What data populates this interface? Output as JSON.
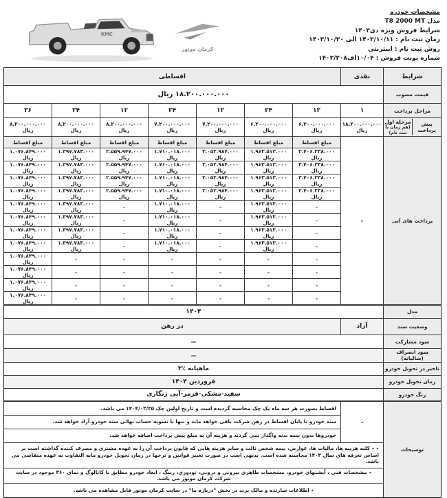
{
  "header": {
    "title": "مشخصات خودرو",
    "model_line": "مدل T8 2000 MT",
    "sale_line": "شرایط فروش ویژه دی۱۴۰۳",
    "register_time": "زمان ثبت نام : ۱۴۰۳/۱۰/۱۱ الی ۱۴۰۳/۱۰/۳۰",
    "register_method": "روش ثبت نام : اینترنتی",
    "sale_number": "شماره نوبت فروش : ۱۰/۰۴اف۱۴۰۳/۲۰۸",
    "brand": "کرمان موتور",
    "car_image": "kmc-t8-pickup-white",
    "accent_gray": "#ececec"
  },
  "table": {
    "terms_label": "شرایط",
    "cash_label": "نقدی",
    "installment_label": "اقساطی",
    "approved_price_label": "قیمت مصوب",
    "approved_price": "۱۸.۲۰۰.۰۰۰.۰۰۰ ریال",
    "stages_label": "مراحل پرداخت",
    "stages": [
      "۱",
      "۱۲",
      "۲۴",
      "۱۲",
      "۲۴",
      "۱۲",
      "۲۴",
      "۳۶"
    ],
    "downpayment_label": "پیش پرداخت",
    "downpayment_sub1": "مرحله اول",
    "downpayment_sub2": "(هم زمان با ثبت نام)",
    "downpayments": [
      "۱۸.۲۰۰.۰۰۰.۰۰۰ ریال",
      "۶.۲۰۰.۰۰۰.۰۰۰ ریال",
      "۶.۲۰۰.۰۰۰.۰۰۰ ریال",
      "۷.۲۰۰.۰۰۰.۰۰۰ ریال",
      "۷.۲۰۰.۰۰۰.۰۰۰ ریال",
      "۸.۲۰۰.۰۰۰.۰۰۰ ریال",
      "۸.۲۰۰.۰۰۰.۰۰۰ ریال",
      "۸.۲۰۰.۰۰۰.۰۰۰ ریال"
    ],
    "installment_amount_label": "مبلغ اقساط",
    "future_label": "پرداخت های آتی",
    "cash_future": "-",
    "payment_rows": [
      [
        "۳.۴۰۶.۳۳۸.۰۰۰ ریال",
        "۱.۹۶۳.۵۱۳.۰۰۰ ریال",
        "۳.۰۵۲.۹۸۴.۰۰۰ ریال",
        "۱.۷۱۰.۰۱۸.۰۰۰ ریال",
        "۲.۵۵۹.۹۴۷.۰۰۰ ریال",
        "۱.۳۹۷.۷۸۳.۰۰۰ ریال",
        "۱.۰۷۶.۸۴۹.۰۰۰ ریال"
      ],
      [
        "۳.۴۰۶.۳۳۸.۰۰۰ ریال",
        "۱.۹۶۳.۵۱۳.۰۰۰ ریال",
        "۳.۰۵۲.۹۸۴.۰۰۰ ریال",
        "۱.۷۱۰.۰۱۸.۰۰۰ ریال",
        "۲.۵۵۹.۹۴۷.۰۰۰ ریال",
        "۱.۳۹۷.۷۸۳.۰۰۰ ریال",
        "۱.۰۷۶.۸۴۹.۰۰۰ ریال"
      ],
      [
        "۳.۴۰۶.۳۳۸.۰۰۰ ریال",
        "۱.۹۶۳.۵۱۳.۰۰۰ ریال",
        "۳.۰۵۲.۹۸۴.۰۰۰ ریال",
        "۱.۷۱۰.۰۱۸.۰۰۰ ریال",
        "۲.۵۵۹.۹۴۷.۰۰۰ ریال",
        "۱.۳۹۷.۷۸۳.۰۰۰ ریال",
        "۱.۰۷۶.۸۴۹.۰۰۰ ریال"
      ],
      [
        "۳.۴۰۶.۳۳۸.۰۰۰ ریال",
        "۱.۹۶۳.۵۱۳.۰۰۰ ریال",
        "۳.۰۵۲.۹۸۴.۰۰۰ ریال",
        "۱.۷۱۰.۰۱۸.۰۰۰ ریال",
        "۲.۵۵۹.۹۴۷.۰۰۰ ریال",
        "۱.۳۹۷.۷۸۳.۰۰۰ ریال",
        "۱.۰۷۶.۸۴۹.۰۰۰ ریال"
      ],
      [
        "-",
        "۱.۹۶۳.۵۱۳.۰۰۰ ریال",
        "-",
        "۱.۷۱۰.۰۱۸.۰۰۰ ریال",
        "-",
        "۱.۳۹۷.۷۸۳.۰۰۰ ریال",
        "۱.۰۷۶.۸۴۹.۰۰۰ ریال"
      ],
      [
        "-",
        "۱.۹۶۳.۵۱۳.۰۰۰ ریال",
        "-",
        "۱.۷۱۰.۰۱۸.۰۰۰ ریال",
        "-",
        "۱.۳۹۷.۷۸۳.۰۰۰ ریال",
        "۱.۰۷۶.۸۴۹.۰۰۰ ریال"
      ],
      [
        "-",
        "۱.۹۶۳.۵۱۳.۰۰۰ ریال",
        "-",
        "۱.۷۱۰.۰۱۸.۰۰۰ ریال",
        "-",
        "۱.۳۹۷.۷۸۳.۰۰۰ ریال",
        "۱.۰۷۶.۸۴۹.۰۰۰ ریال"
      ],
      [
        "-",
        "۱.۹۶۳.۵۱۳.۰۰۰ ریال",
        "-",
        "۱.۷۱۰.۰۱۸.۰۰۰ ریال",
        "-",
        "۱.۳۹۷.۷۸۳.۰۰۰ ریال",
        "۱.۰۷۶.۸۴۹.۰۰۰ ریال"
      ],
      [
        "-",
        "-",
        "-",
        "-",
        "-",
        "-",
        "۱.۰۷۶.۸۴۹.۰۰۰ ریال"
      ],
      [
        "-",
        "-",
        "-",
        "-",
        "-",
        "-",
        "۱.۰۷۶.۸۴۹.۰۰۰ ریال"
      ],
      [
        "-",
        "-",
        "-",
        "-",
        "-",
        "-",
        "۱.۰۷۶.۸۴۹.۰۰۰ ریال"
      ],
      [
        "-",
        "-",
        "-",
        "-",
        "-",
        "-",
        "۱.۰۷۶.۸۴۹.۰۰۰ ریال"
      ]
    ]
  },
  "details": {
    "model_label": "مدل",
    "model_value": "۱۴۰۴",
    "doc_label": "وضعیت سند",
    "doc_cash": "آزاد",
    "doc_installment": "در رهن",
    "partnership_label": "سود مشارکت",
    "partnership_value": "—",
    "cancel_label": "سود انصراف (سالیانه)",
    "cancel_value": "—",
    "delay_label": "تاخیر در تحویل خودرو",
    "delay_value": "۳٪ ماهیانه",
    "delivery_label": "زمان تحویل خودرو",
    "delivery_value": "فروردین ۱۴۰۴",
    "color_label": "رنگ خودرو",
    "color_value": "سفید-مشکی-قرمز-آبی زنگاری"
  },
  "notes": {
    "label": "توضیحات",
    "cash_dash": "-",
    "row1": "اقساط بصورت هر سه ماه یک چک محاسبه گردیده است و تاریخ اولین چک  ۱۴۰۴/۰۳/۲۵ می باشد.",
    "row2": "سند خودرو تا پایان اقساط در رهن شرکت باقی خواهد ماند و تنها با تسویه حساب نهائی سند خودرو آزاد خواهد شد.",
    "row3": "خودروها بدون بیمه بدنه واگذار نمی گردند و هزینه آن به مبلغ پیش پرداخت اضافه خواهد شد.",
    "row4": "٭ ٭ کلیه هزینه ها، مالیات ها، عوارض، بیمه شخص ثالث و سایر هزینه هایی که قانون پرداخت آن را به عهده مشتری و مصرف کننده گذاشته است بر اساس تعرفه های سال ۱۴۰۳ محاسبه شده است. بدیهی است در صورت تغییر قوانین و نرخها در زمان تحویل خودرو مابه التفاوت به عهده متقاضی می باشد.",
    "row5": "٭ مشخصات فنی ، آپشنهای خودرو، مشخصات ظاهری بیرونی و درونی، تودوزی، رینگ ، ابعاد خودرو مطابق با کاتالوگ و نمای ۳۶۰ موجود در سایت شرکت کرمان موتور می باشد.",
    "row6": "٭ اطلاعات سازنده و مالک برند در بخش \"درباره ما\" در سایت کرمان موتور قابل مشاهده می باشد."
  }
}
